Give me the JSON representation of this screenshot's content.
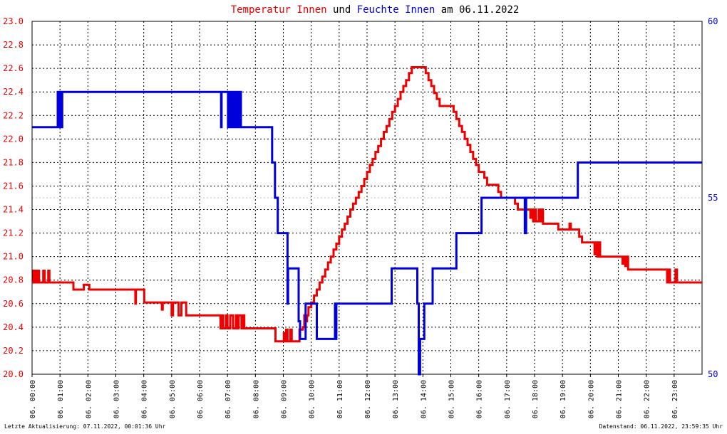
{
  "title": {
    "part1": "Temperatur Innen",
    "part2": " und ",
    "part3": "Feuchte Innen",
    "part4": " am 06.11.2022"
  },
  "footer": {
    "left": "Letzte Aktualisierung: 07.11.2022, 00:01:36 Uhr",
    "right": "Datenstand: 06.11.2022, 23:59:35 Uhr"
  },
  "colors": {
    "temperature": "#ee0000",
    "humidity": "#0000dd",
    "grid": "#000000",
    "background": "#ffffff"
  },
  "chart_data": {
    "type": "line",
    "title": "Temperatur Innen und Feuchte Innen am 06.11.2022",
    "x": {
      "range_hours": [
        0,
        24
      ],
      "tick_labels": [
        "06. 00:00",
        "06. 01:00",
        "06. 02:00",
        "06. 03:00",
        "06. 04:00",
        "06. 05:00",
        "06. 06:00",
        "06. 07:00",
        "06. 08:00",
        "06. 09:00",
        "06. 10:00",
        "06. 11:00",
        "06. 12:00",
        "06. 13:00",
        "06. 14:00",
        "06. 15:00",
        "06. 16:00",
        "06. 17:00",
        "06. 18:00",
        "06. 19:00",
        "06. 20:00",
        "06. 21:00",
        "06. 22:00",
        "06. 23:00"
      ]
    },
    "y_left": {
      "range": [
        20.0,
        23.0
      ],
      "tick_labels": [
        "20.0",
        "20.2",
        "20.4",
        "20.6",
        "20.8",
        "21.0",
        "21.2",
        "21.4",
        "21.6",
        "21.8",
        "22.0",
        "22.2",
        "22.4",
        "22.6",
        "22.8",
        "23.0"
      ],
      "color": "#ee0000"
    },
    "y_right": {
      "range": [
        50,
        60
      ],
      "tick_labels": [
        "50",
        "55",
        "60"
      ],
      "color": "#0000dd"
    },
    "grid": true,
    "series": [
      {
        "name": "Temperatur Innen",
        "axis": "left",
        "color": "#ee0000",
        "points": [
          [
            0.0,
            20.78
          ],
          [
            0.05,
            20.88
          ],
          [
            0.08,
            20.78
          ],
          [
            0.12,
            20.88
          ],
          [
            0.15,
            20.78
          ],
          [
            0.2,
            20.88
          ],
          [
            0.25,
            20.78
          ],
          [
            0.35,
            20.78
          ],
          [
            0.4,
            20.88
          ],
          [
            0.45,
            20.78
          ],
          [
            0.55,
            20.78
          ],
          [
            0.58,
            20.88
          ],
          [
            0.62,
            20.78
          ],
          [
            1.45,
            20.78
          ],
          [
            1.48,
            20.72
          ],
          [
            1.8,
            20.72
          ],
          [
            1.85,
            20.76
          ],
          [
            2.05,
            20.72
          ],
          [
            3.65,
            20.72
          ],
          [
            3.7,
            20.6
          ],
          [
            3.72,
            20.72
          ],
          [
            4.0,
            20.72
          ],
          [
            4.02,
            20.61
          ],
          [
            4.6,
            20.61
          ],
          [
            4.65,
            20.55
          ],
          [
            4.68,
            20.61
          ],
          [
            4.95,
            20.61
          ],
          [
            5.0,
            20.5
          ],
          [
            5.05,
            20.61
          ],
          [
            5.2,
            20.61
          ],
          [
            5.25,
            20.5
          ],
          [
            5.35,
            20.61
          ],
          [
            5.5,
            20.61
          ],
          [
            5.52,
            20.5
          ],
          [
            6.7,
            20.5
          ],
          [
            6.75,
            20.39
          ],
          [
            6.8,
            20.5
          ],
          [
            6.85,
            20.39
          ],
          [
            6.95,
            20.5
          ],
          [
            7.0,
            20.39
          ],
          [
            7.1,
            20.5
          ],
          [
            7.2,
            20.39
          ],
          [
            7.3,
            20.5
          ],
          [
            7.35,
            20.39
          ],
          [
            7.4,
            20.5
          ],
          [
            7.5,
            20.39
          ],
          [
            7.55,
            20.5
          ],
          [
            7.6,
            20.39
          ],
          [
            8.7,
            20.39
          ],
          [
            8.72,
            20.28
          ],
          [
            9.0,
            20.28
          ],
          [
            9.02,
            20.35
          ],
          [
            9.05,
            20.28
          ],
          [
            9.1,
            20.38
          ],
          [
            9.15,
            20.28
          ],
          [
            9.25,
            20.38
          ],
          [
            9.3,
            20.28
          ],
          [
            9.55,
            20.28
          ],
          [
            9.58,
            20.38
          ],
          [
            9.7,
            20.4
          ],
          [
            9.75,
            20.5
          ],
          [
            9.8,
            20.45
          ],
          [
            9.85,
            20.5
          ],
          [
            9.9,
            20.57
          ],
          [
            10.0,
            20.61
          ],
          [
            10.1,
            20.67
          ],
          [
            10.2,
            20.72
          ],
          [
            10.3,
            20.78
          ],
          [
            10.4,
            20.83
          ],
          [
            10.5,
            20.89
          ],
          [
            10.6,
            20.95
          ],
          [
            10.7,
            21.0
          ],
          [
            10.8,
            21.06
          ],
          [
            10.9,
            21.11
          ],
          [
            11.0,
            21.17
          ],
          [
            11.1,
            21.23
          ],
          [
            11.2,
            21.28
          ],
          [
            11.3,
            21.34
          ],
          [
            11.4,
            21.4
          ],
          [
            11.5,
            21.45
          ],
          [
            11.6,
            21.5
          ],
          [
            11.7,
            21.55
          ],
          [
            11.8,
            21.6
          ],
          [
            11.9,
            21.66
          ],
          [
            12.0,
            21.72
          ],
          [
            12.1,
            21.78
          ],
          [
            12.2,
            21.83
          ],
          [
            12.3,
            21.89
          ],
          [
            12.4,
            21.94
          ],
          [
            12.5,
            22.0
          ],
          [
            12.6,
            22.06
          ],
          [
            12.7,
            22.11
          ],
          [
            12.8,
            22.17
          ],
          [
            12.9,
            22.23
          ],
          [
            13.0,
            22.28
          ],
          [
            13.1,
            22.34
          ],
          [
            13.2,
            22.4
          ],
          [
            13.3,
            22.45
          ],
          [
            13.4,
            22.5
          ],
          [
            13.5,
            22.56
          ],
          [
            13.6,
            22.61
          ],
          [
            14.05,
            22.61
          ],
          [
            14.1,
            22.56
          ],
          [
            14.2,
            22.5
          ],
          [
            14.3,
            22.45
          ],
          [
            14.4,
            22.39
          ],
          [
            14.5,
            22.34
          ],
          [
            14.6,
            22.28
          ],
          [
            15.0,
            22.28
          ],
          [
            15.1,
            22.23
          ],
          [
            15.2,
            22.17
          ],
          [
            15.3,
            22.11
          ],
          [
            15.4,
            22.06
          ],
          [
            15.5,
            22.0
          ],
          [
            15.6,
            21.95
          ],
          [
            15.7,
            21.89
          ],
          [
            15.8,
            21.83
          ],
          [
            15.9,
            21.78
          ],
          [
            16.0,
            21.72
          ],
          [
            16.1,
            21.72
          ],
          [
            16.2,
            21.67
          ],
          [
            16.3,
            21.61
          ],
          [
            16.6,
            21.61
          ],
          [
            16.7,
            21.55
          ],
          [
            16.8,
            21.5
          ],
          [
            17.2,
            21.5
          ],
          [
            17.3,
            21.45
          ],
          [
            17.4,
            21.4
          ],
          [
            17.8,
            21.4
          ],
          [
            17.85,
            21.33
          ],
          [
            17.9,
            21.4
          ],
          [
            17.95,
            21.3
          ],
          [
            18.0,
            21.4
          ],
          [
            18.05,
            21.3
          ],
          [
            18.15,
            21.4
          ],
          [
            18.2,
            21.3
          ],
          [
            18.25,
            21.4
          ],
          [
            18.3,
            21.28
          ],
          [
            18.8,
            21.28
          ],
          [
            18.85,
            21.23
          ],
          [
            19.2,
            21.23
          ],
          [
            19.25,
            21.28
          ],
          [
            19.3,
            21.23
          ],
          [
            19.55,
            21.23
          ],
          [
            19.6,
            21.17
          ],
          [
            19.7,
            21.12
          ],
          [
            20.1,
            21.12
          ],
          [
            20.15,
            21.02
          ],
          [
            20.2,
            21.12
          ],
          [
            20.25,
            21.0
          ],
          [
            20.3,
            21.12
          ],
          [
            20.35,
            21.0
          ],
          [
            21.1,
            21.0
          ],
          [
            21.15,
            20.94
          ],
          [
            21.2,
            21.0
          ],
          [
            21.25,
            20.92
          ],
          [
            21.3,
            21.0
          ],
          [
            21.35,
            20.89
          ],
          [
            21.4,
            20.89
          ],
          [
            22.7,
            20.89
          ],
          [
            22.75,
            20.78
          ],
          [
            22.8,
            20.89
          ],
          [
            22.85,
            20.78
          ],
          [
            23.0,
            20.78
          ],
          [
            23.05,
            20.89
          ],
          [
            23.1,
            20.78
          ],
          [
            24.0,
            20.78
          ]
        ]
      },
      {
        "name": "Feuchte Innen",
        "axis": "right",
        "color": "#0000dd",
        "points": [
          [
            0.0,
            57.0
          ],
          [
            0.9,
            57.0
          ],
          [
            0.92,
            58.0
          ],
          [
            0.94,
            57.0
          ],
          [
            0.96,
            58.0
          ],
          [
            0.98,
            57.0
          ],
          [
            1.0,
            58.0
          ],
          [
            1.02,
            57.0
          ],
          [
            1.04,
            58.0
          ],
          [
            1.06,
            57.0
          ],
          [
            1.08,
            58.0
          ],
          [
            6.75,
            58.0
          ],
          [
            6.77,
            57.0
          ],
          [
            6.79,
            58.0
          ],
          [
            7.0,
            58.0
          ],
          [
            7.02,
            57.0
          ],
          [
            7.05,
            58.0
          ],
          [
            7.08,
            57.0
          ],
          [
            7.11,
            58.0
          ],
          [
            7.14,
            57.0
          ],
          [
            7.17,
            58.0
          ],
          [
            7.2,
            57.0
          ],
          [
            7.23,
            58.0
          ],
          [
            7.26,
            57.0
          ],
          [
            7.29,
            58.0
          ],
          [
            7.32,
            57.0
          ],
          [
            7.35,
            58.0
          ],
          [
            7.4,
            57.0
          ],
          [
            7.45,
            58.0
          ],
          [
            7.48,
            57.0
          ],
          [
            8.55,
            57.0
          ],
          [
            8.6,
            56.0
          ],
          [
            8.65,
            56.0
          ],
          [
            8.7,
            55.0
          ],
          [
            8.75,
            55.0
          ],
          [
            8.8,
            54.0
          ],
          [
            9.1,
            54.0
          ],
          [
            9.15,
            52.0
          ],
          [
            9.17,
            53.0
          ],
          [
            9.5,
            53.0
          ],
          [
            9.55,
            51.5
          ],
          [
            9.6,
            51.0
          ],
          [
            9.75,
            51.0
          ],
          [
            9.8,
            52.0
          ],
          [
            10.15,
            52.0
          ],
          [
            10.2,
            51.0
          ],
          [
            10.8,
            51.0
          ],
          [
            10.85,
            52.0
          ],
          [
            10.88,
            51.0
          ],
          [
            10.9,
            52.0
          ],
          [
            12.85,
            52.0
          ],
          [
            12.88,
            53.0
          ],
          [
            13.75,
            53.0
          ],
          [
            13.8,
            52.0
          ],
          [
            13.85,
            50.0
          ],
          [
            13.9,
            51.0
          ],
          [
            14.0,
            51.0
          ],
          [
            14.05,
            52.0
          ],
          [
            14.3,
            52.0
          ],
          [
            14.35,
            53.0
          ],
          [
            15.15,
            53.0
          ],
          [
            15.2,
            54.0
          ],
          [
            16.05,
            54.0
          ],
          [
            16.1,
            55.0
          ],
          [
            17.6,
            55.0
          ],
          [
            17.65,
            54.0
          ],
          [
            17.7,
            55.0
          ],
          [
            18.1,
            55.0
          ],
          [
            18.15,
            55.0
          ],
          [
            19.5,
            55.0
          ],
          [
            19.55,
            56.0
          ],
          [
            24.0,
            56.0
          ]
        ]
      }
    ]
  }
}
